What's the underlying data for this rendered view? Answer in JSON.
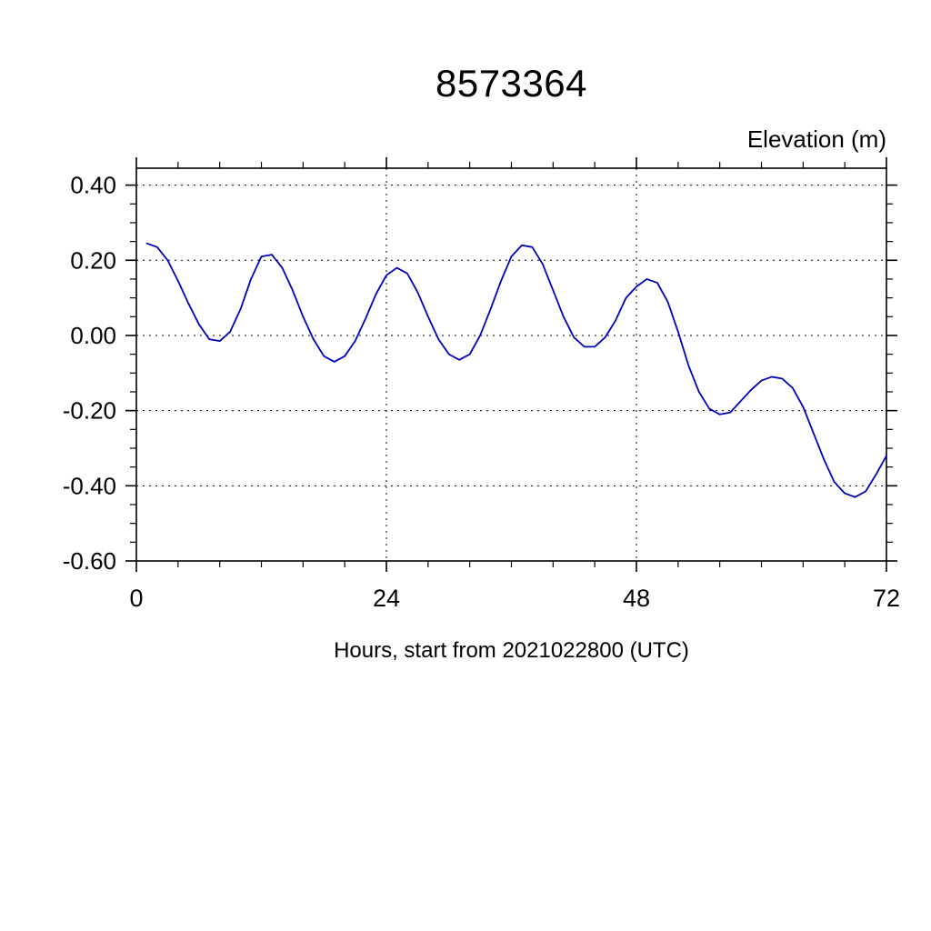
{
  "title": "8573364",
  "y_axis_title": "Elevation (m)",
  "x_axis_label": "Hours, start from 2021022800 (UTC)",
  "chart_data": {
    "type": "line",
    "title": "8573364",
    "ylabel": "Elevation (m)",
    "xlabel": "Hours, start from 2021022800 (UTC)",
    "line_color": "#0000bb",
    "axis_color": "#000000",
    "grid_on": true,
    "legend_position": "none",
    "xlim": [
      0,
      72
    ],
    "ylim": [
      -0.6,
      0.445
    ],
    "xticks": {
      "major": [
        0,
        24,
        48,
        72
      ],
      "labels": [
        "0",
        "24",
        "48",
        "72"
      ],
      "minor_step": 4
    },
    "yticks": {
      "major": [
        0.4,
        0.2,
        0.0,
        -0.2,
        -0.4,
        -0.6
      ],
      "labels": [
        "0.40",
        "0.20",
        "0.00",
        "-0.20",
        "-0.40",
        "-0.60"
      ],
      "minor_step": 0.05
    },
    "grid": {
      "x": [
        24,
        48
      ],
      "y": [
        0.4,
        0.2,
        0.0,
        -0.2,
        -0.4
      ]
    },
    "series": [
      {
        "name": "elevation",
        "x": [
          1,
          2,
          3,
          4,
          5,
          6,
          7,
          8,
          9,
          10,
          11,
          12,
          13,
          14,
          15,
          16,
          17,
          18,
          19,
          20,
          21,
          22,
          23,
          24,
          25,
          26,
          27,
          28,
          29,
          30,
          31,
          32,
          33,
          34,
          35,
          36,
          37,
          38,
          39,
          40,
          41,
          42,
          43,
          44,
          45,
          46,
          47,
          48,
          49,
          50,
          51,
          52,
          53,
          54,
          55,
          56,
          57,
          58,
          59,
          60,
          61,
          62,
          63,
          64,
          65,
          66,
          67,
          68,
          69,
          70,
          71,
          72
        ],
        "y": [
          0.245,
          0.235,
          0.2,
          0.145,
          0.085,
          0.03,
          -0.01,
          -0.015,
          0.01,
          0.07,
          0.15,
          0.21,
          0.215,
          0.18,
          0.12,
          0.05,
          -0.01,
          -0.055,
          -0.07,
          -0.055,
          -0.015,
          0.045,
          0.11,
          0.16,
          0.18,
          0.165,
          0.115,
          0.05,
          -0.01,
          -0.05,
          -0.065,
          -0.05,
          0.0,
          0.07,
          0.145,
          0.21,
          0.24,
          0.235,
          0.19,
          0.12,
          0.05,
          -0.005,
          -0.03,
          -0.03,
          -0.005,
          0.04,
          0.1,
          0.13,
          0.15,
          0.14,
          0.09,
          0.01,
          -0.08,
          -0.15,
          -0.195,
          -0.21,
          -0.205,
          -0.175,
          -0.145,
          -0.12,
          -0.11,
          -0.115,
          -0.14,
          -0.19,
          -0.26,
          -0.33,
          -0.39,
          -0.42,
          -0.43,
          -0.415,
          -0.37,
          -0.32
        ]
      }
    ]
  }
}
